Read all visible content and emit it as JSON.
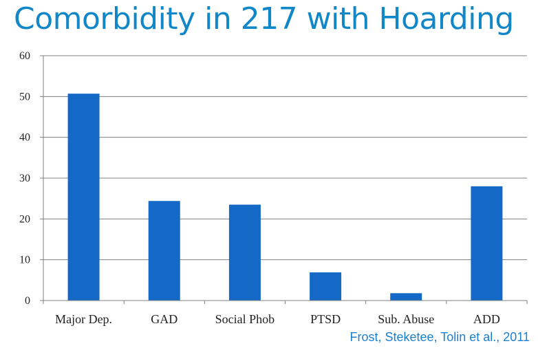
{
  "title": "Comorbidity in 217 with Hoarding",
  "citation": "Frost, Steketee, Tolin et al.,  2011",
  "colors": {
    "title": "#1187c8",
    "bar": "#1469c7",
    "gridline": "#7f7f7f",
    "citation": "#1b7fd0"
  },
  "chart_data": {
    "type": "bar",
    "title": "",
    "xlabel": "",
    "ylabel": "",
    "categories": [
      "Major Dep.",
      "GAD",
      "Social Phob",
      "PTSD",
      "Sub. Abuse",
      "ADD"
    ],
    "values": [
      50.7,
      24.4,
      23.5,
      6.9,
      1.8,
      28.0
    ],
    "ylim": [
      0,
      60
    ],
    "yticks": [
      "0",
      "10",
      "20",
      "30",
      "40",
      "50",
      "60"
    ],
    "grid": true,
    "legend": "none"
  }
}
